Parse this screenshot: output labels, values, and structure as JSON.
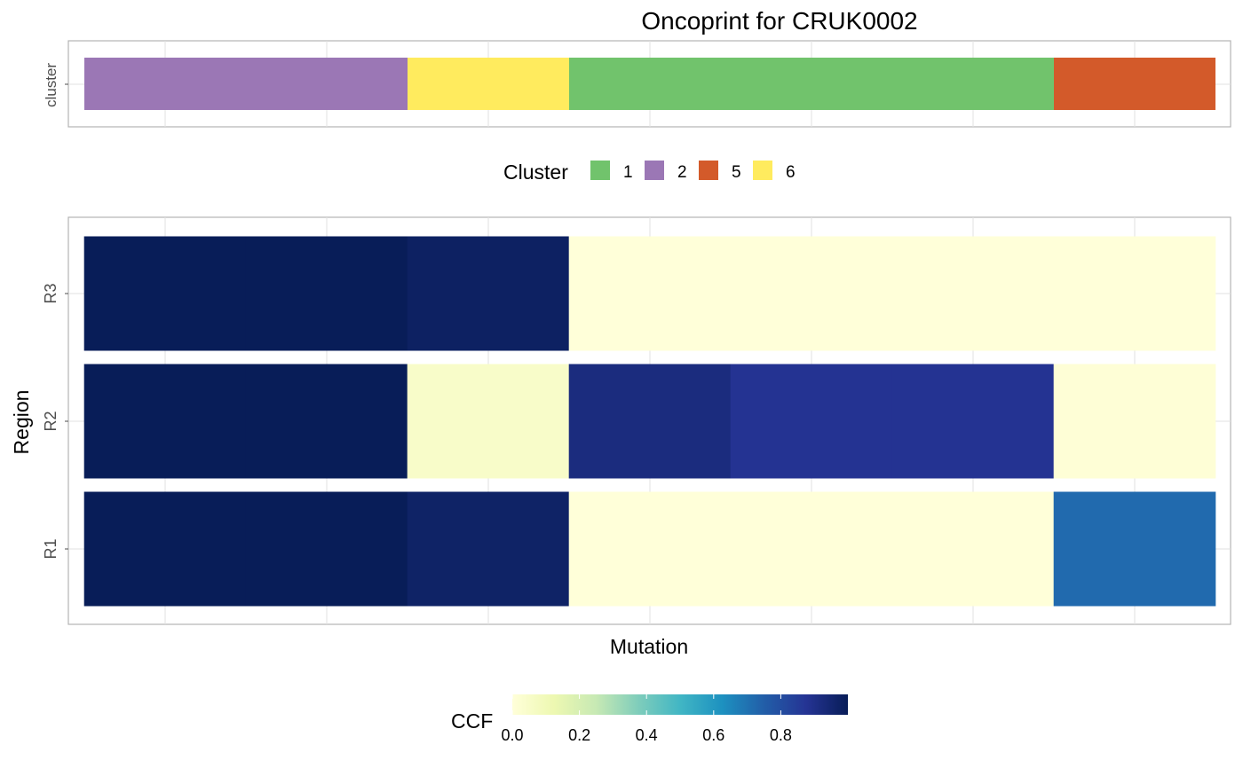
{
  "chart_data": {
    "type": "heatmap",
    "title": "Oncoprint for CRUK0002",
    "xlabel": "Mutation",
    "ylabel": "Region",
    "annotation_track_label": "cluster",
    "regions": [
      "R1",
      "R2",
      "R3"
    ],
    "mutation_count": 7,
    "clusters": [
      {
        "cluster": "2",
        "mutations": 2
      },
      {
        "cluster": "6",
        "mutations": 1
      },
      {
        "cluster": "1",
        "mutations": 3
      },
      {
        "cluster": "5",
        "mutations": 1
      }
    ],
    "ccf": {
      "R3": [
        1.0,
        1.0,
        0.98,
        0.0,
        0.0,
        0.0,
        0.0
      ],
      "R2": [
        1.0,
        1.0,
        0.05,
        0.92,
        0.88,
        0.88,
        0.01
      ],
      "R1": [
        1.0,
        1.0,
        0.97,
        0.0,
        0.0,
        0.0,
        0.72
      ]
    },
    "cluster_legend": {
      "title": "Cluster",
      "items": [
        {
          "label": "1",
          "color": "#71C36C"
        },
        {
          "label": "2",
          "color": "#9B77B5"
        },
        {
          "label": "5",
          "color": "#D35A2A"
        },
        {
          "label": "6",
          "color": "#FFEB5E"
        }
      ]
    },
    "ccf_legend": {
      "title": "CCF",
      "range": [
        0,
        1
      ],
      "ticks": [
        "0.0",
        "0.2",
        "0.4",
        "0.6",
        "0.8"
      ],
      "tick_values": [
        0.0,
        0.2,
        0.4,
        0.6,
        0.8
      ]
    },
    "colormap": "YlGnBu",
    "grid": true
  }
}
